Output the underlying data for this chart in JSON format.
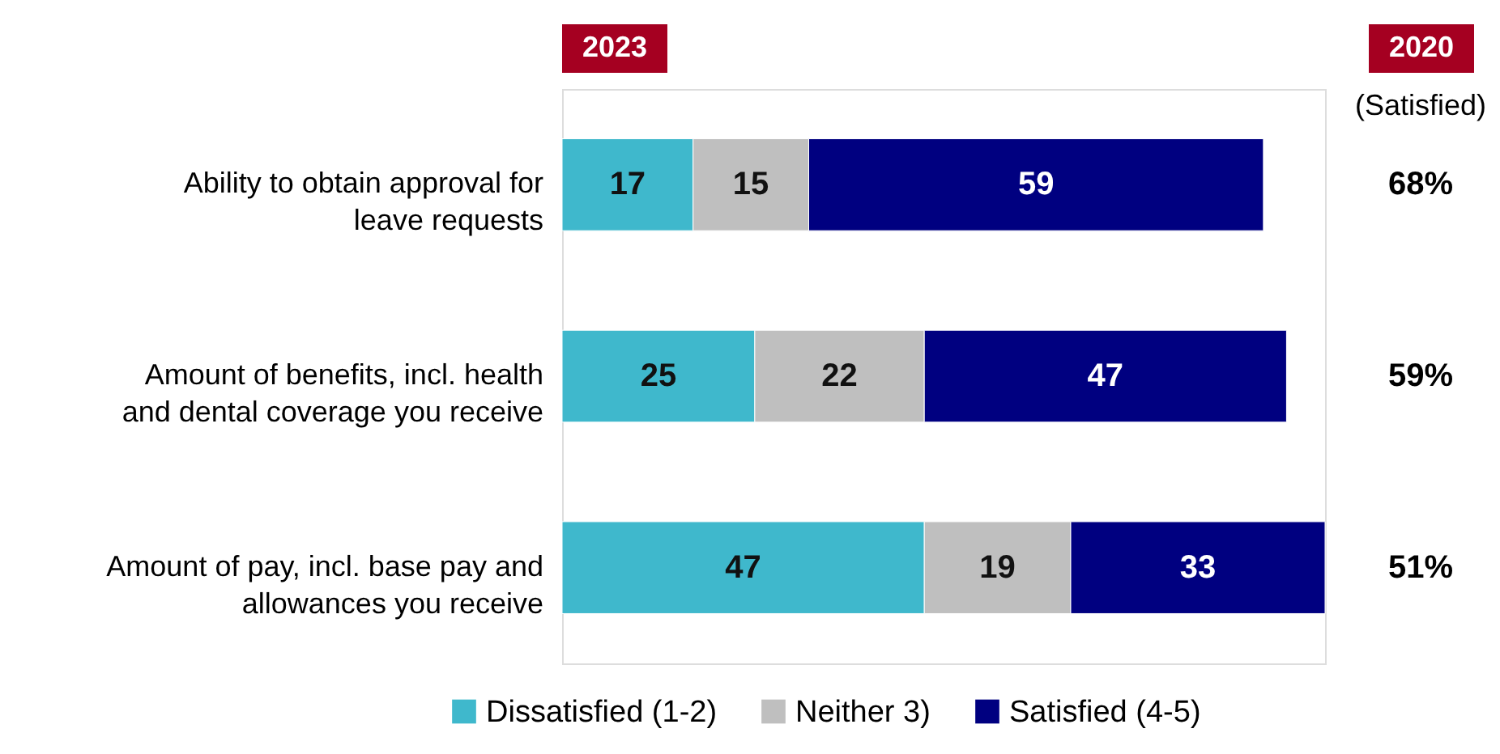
{
  "chart_data": {
    "type": "bar",
    "orientation": "horizontal",
    "stacked": true,
    "data_labels": true,
    "legend": "bottom",
    "categories": [
      "Ability to obtain approval for leave requests",
      "Amount of benefits, incl. health and dental coverage you receive",
      "Amount of pay, incl. base pay and allowances you receive"
    ],
    "series": [
      {
        "name": "Dissatisfied (1-2)",
        "color": "#3fb8cc",
        "values": [
          17,
          25,
          47
        ]
      },
      {
        "name": "Neither 3)",
        "color": "#bfbfbf",
        "values": [
          15,
          22,
          19
        ]
      },
      {
        "name": "Satisfied (4-5)",
        "color": "#000080",
        "values": [
          59,
          47,
          33
        ]
      }
    ],
    "annotations": [
      "2023",
      "2020",
      "(Satisfied)",
      "68%",
      "59%",
      "51%"
    ]
  }
}
